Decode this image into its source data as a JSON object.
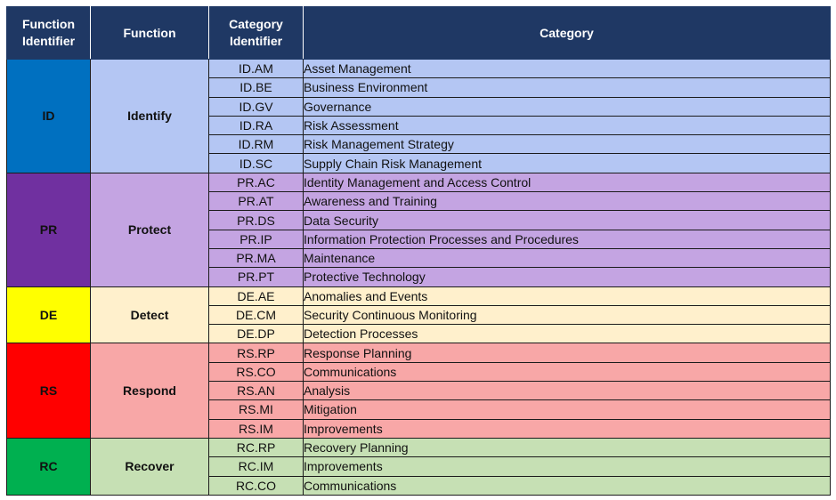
{
  "header": {
    "function_identifier": "Function Identifier",
    "function": "Function",
    "category_identifier": "Category Identifier",
    "category": "Category"
  },
  "colors": {
    "header_bg": "#1f3864",
    "id_dark": "#0070c0",
    "id_light": "#b4c6f3",
    "pr_dark": "#7030a0",
    "pr_light": "#c4a4e2",
    "de_dark": "#ffff00",
    "de_light": "#fff0cc",
    "rs_dark": "#ff0000",
    "rs_light": "#f8a7a7",
    "rc_dark": "#00b050",
    "rc_light": "#c6e0b4"
  },
  "groups": [
    {
      "key": "id",
      "identifier": "ID",
      "name": "Identify",
      "categories": [
        {
          "id": "ID.AM",
          "name": "Asset Management"
        },
        {
          "id": "ID.BE",
          "name": "Business Environment"
        },
        {
          "id": "ID.GV",
          "name": "Governance"
        },
        {
          "id": "ID.RA",
          "name": "Risk Assessment"
        },
        {
          "id": "ID.RM",
          "name": "Risk Management Strategy"
        },
        {
          "id": "ID.SC",
          "name": "Supply Chain Risk Management"
        }
      ]
    },
    {
      "key": "pr",
      "identifier": "PR",
      "name": "Protect",
      "categories": [
        {
          "id": "PR.AC",
          "name": "Identity Management and Access Control"
        },
        {
          "id": "PR.AT",
          "name": "Awareness and Training"
        },
        {
          "id": "PR.DS",
          "name": "Data Security"
        },
        {
          "id": "PR.IP",
          "name": "Information Protection Processes and Procedures"
        },
        {
          "id": "PR.MA",
          "name": "Maintenance"
        },
        {
          "id": "PR.PT",
          "name": "Protective Technology"
        }
      ]
    },
    {
      "key": "de",
      "identifier": "DE",
      "name": "Detect",
      "categories": [
        {
          "id": "DE.AE",
          "name": "Anomalies and Events"
        },
        {
          "id": "DE.CM",
          "name": "Security Continuous Monitoring"
        },
        {
          "id": "DE.DP",
          "name": "Detection Processes"
        }
      ]
    },
    {
      "key": "rs",
      "identifier": "RS",
      "name": "Respond",
      "categories": [
        {
          "id": "RS.RP",
          "name": "Response Planning"
        },
        {
          "id": "RS.CO",
          "name": "Communications"
        },
        {
          "id": "RS.AN",
          "name": "Analysis"
        },
        {
          "id": "RS.MI",
          "name": "Mitigation"
        },
        {
          "id": "RS.IM",
          "name": "Improvements"
        }
      ]
    },
    {
      "key": "rc",
      "identifier": "RC",
      "name": "Recover",
      "categories": [
        {
          "id": "RC.RP",
          "name": "Recovery Planning"
        },
        {
          "id": "RC.IM",
          "name": "Improvements"
        },
        {
          "id": "RC.CO",
          "name": "Communications"
        }
      ]
    }
  ]
}
